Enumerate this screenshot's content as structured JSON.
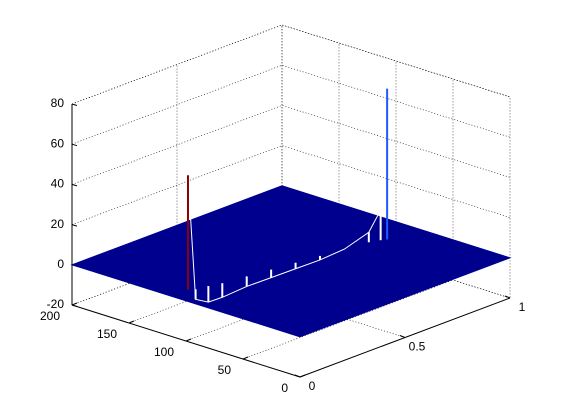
{
  "chart_data": {
    "type": "mesh3d",
    "x": [
      0.08,
      0.1,
      0.15,
      0.2,
      0.3,
      0.4,
      0.5,
      0.6,
      0.7,
      0.8,
      0.84,
      0.86
    ],
    "y": [
      113,
      110,
      108,
      105,
      102,
      99,
      96,
      93,
      90,
      87,
      84,
      82
    ],
    "z": [
      57,
      -5,
      -8,
      -7,
      -5,
      -4,
      -3,
      -2,
      0,
      5,
      15,
      75
    ],
    "colors": [
      "#8b0000",
      "#ffffff",
      "#ffffff",
      "#ffffff",
      "#ffffff",
      "#ffffff",
      "#ffffff",
      "#ffffff",
      "#ffffff",
      "#ffffff",
      "#ffffff",
      "#1e5aff"
    ],
    "surface_color": "#00008f",
    "xlim": [
      0,
      1
    ],
    "xticks": [
      0,
      0.5,
      1
    ],
    "ylim": [
      0,
      200
    ],
    "yticks": [
      0,
      50,
      100,
      150,
      200
    ],
    "zlim": [
      -20,
      80
    ],
    "zticks": [
      -20,
      0,
      20,
      40,
      60,
      80
    ],
    "grid": true
  }
}
